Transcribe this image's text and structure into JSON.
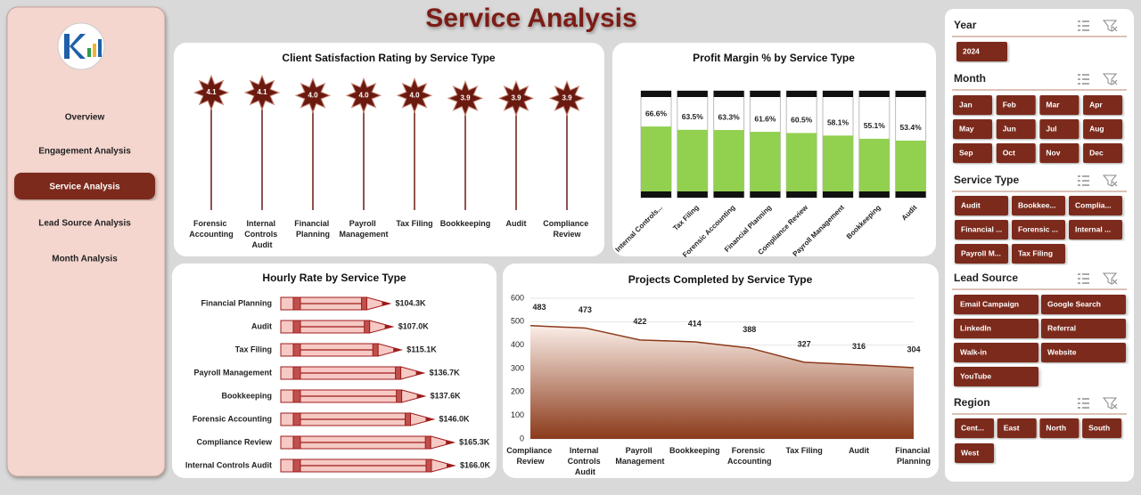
{
  "header": {
    "title": "Service Analysis"
  },
  "nav": {
    "items": [
      "Overview",
      "Engagement  Analysis",
      "Service Analysis",
      "Lead Source Analysis",
      "Month Analysis"
    ]
  },
  "slicers": [
    {
      "title": "Year",
      "items": [
        "2024"
      ]
    },
    {
      "title": "Month",
      "items": [
        "Jan",
        "Feb",
        "Mar",
        "Apr",
        "May",
        "Jun",
        "Jul",
        "Aug",
        "Sep",
        "Oct",
        "Nov",
        "Dec"
      ]
    },
    {
      "title": "Service Type",
      "items": [
        "Audit",
        "Bookkee...",
        "Complia...",
        "Financial ...",
        "Forensic ...",
        "Internal ...",
        "Payroll M...",
        "Tax Filing"
      ]
    },
    {
      "title": "Lead Source",
      "items": [
        "Email Campaign",
        "Google Search",
        "LinkedIn",
        "Referral",
        "Walk-in",
        "Website",
        "YouTube"
      ]
    },
    {
      "title": "Region",
      "items": [
        "Cent...",
        "East",
        "North",
        "South",
        "West"
      ]
    }
  ],
  "chart_data": [
    {
      "type": "lollipop",
      "title": "Client Satisfaction Rating by Service Type",
      "categories": [
        "Forensic Accounting",
        "Internal Controls Audit",
        "Financial Planning",
        "Payroll Management",
        "Tax Filing",
        "Bookkeeping",
        "Audit",
        "Compliance Review"
      ],
      "values": [
        4.1,
        4.1,
        4.0,
        4.0,
        4.0,
        3.9,
        3.9,
        3.9
      ],
      "value_labels": [
        "4.1",
        "4.1",
        "4.0",
        "4.0",
        "4.0",
        "3.9",
        "3.9",
        "3.9"
      ],
      "color": "#6b1a10"
    },
    {
      "type": "cylinder",
      "title": "Profit Margin % by Service Type",
      "categories": [
        "Internal Controls...",
        "Tax Filing",
        "Forensic Accounting",
        "Financial Planning",
        "Compliance Review",
        "Payroll Management",
        "Bookkeeping",
        "Audit"
      ],
      "values": [
        66.6,
        63.5,
        63.3,
        61.6,
        60.5,
        58.1,
        55.1,
        53.4
      ],
      "value_labels": [
        "66.6%",
        "63.5%",
        "63.3%",
        "61.6%",
        "60.5%",
        "58.1%",
        "55.1%",
        "53.4%"
      ],
      "ylim": [
        0,
        100
      ],
      "color": "#92d050"
    },
    {
      "type": "pencil",
      "title": "Hourly Rate by Service Type",
      "categories": [
        "Financial Planning",
        "Audit",
        "Tax Filing",
        "Payroll Management",
        "Bookkeeping",
        "Forensic Accounting",
        "Compliance Review",
        "Internal Controls Audit"
      ],
      "values": [
        104300,
        107000,
        115100,
        136700,
        137600,
        146000,
        165300,
        166000
      ],
      "value_labels": [
        "$104.3K",
        "$107.0K",
        "$115.1K",
        "$136.7K",
        "$137.6K",
        "$146.0K",
        "$165.3K",
        "$166.0K"
      ],
      "color": "#f6c9c4"
    },
    {
      "type": "area",
      "title": "Projects Completed by Service Type",
      "categories": [
        "Compliance Review",
        "Internal Controls Audit",
        "Payroll Management",
        "Bookkeeping",
        "Forensic Accounting",
        "Tax Filing",
        "Audit",
        "Financial Planning"
      ],
      "values": [
        483,
        473,
        422,
        414,
        388,
        327,
        316,
        304
      ],
      "ylim": [
        0,
        600
      ],
      "yticks": [
        0,
        100,
        200,
        300,
        400,
        500,
        600
      ],
      "grid": true,
      "color": "#8b3a1a"
    }
  ]
}
